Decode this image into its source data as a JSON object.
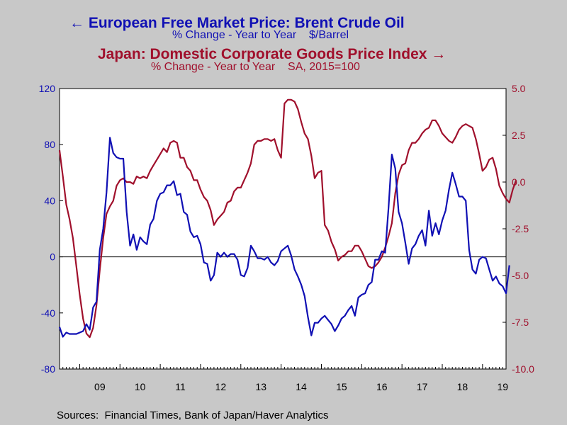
{
  "header": {
    "series1_title": "European Free Market Price: Brent Crude Oil",
    "series1_subtitle": "% Change - Year to Year    $/Barrel",
    "series2_title": "Japan: Domestic Corporate Goods Price Index",
    "series2_subtitle": "% Change - Year to Year    SA, 2015=100"
  },
  "footer": {
    "source": "Sources:  Financial Times, Bank of Japan/Haver Analytics"
  },
  "colors": {
    "background": "#c8c8c8",
    "plot_background": "#ffffff",
    "series1": "#1010b4",
    "series2": "#a0102c"
  },
  "chart_data": {
    "type": "line",
    "x_start": "2008-07",
    "x_end": "2019-08",
    "x_tick_labels": [
      "09",
      "10",
      "11",
      "12",
      "13",
      "14",
      "15",
      "16",
      "17",
      "18",
      "19"
    ],
    "left_axis": {
      "min": -80,
      "max": 120,
      "ticks": [
        -80,
        -40,
        0,
        40,
        80,
        120
      ],
      "tick_labels": [
        "-80",
        "-40",
        "0",
        "40",
        "80",
        "120"
      ]
    },
    "right_axis": {
      "min": -10,
      "max": 5,
      "ticks": [
        -10,
        -7.5,
        -5,
        -2.5,
        0,
        2.5,
        5
      ],
      "tick_labels": [
        "-10.0",
        "-7.5",
        "-5.0",
        "-2.5",
        "0.0",
        "2.5",
        "5.0"
      ]
    },
    "zero_line": 0,
    "grid": false,
    "series": [
      {
        "axis": "left",
        "legend_arrow": "left",
        "points": [
          [
            "2008-07",
            -50
          ],
          [
            "2008-08",
            -57
          ],
          [
            "2008-09",
            -54
          ],
          [
            "2008-10",
            -55
          ],
          [
            "2008-12",
            -55
          ],
          [
            "2009-02",
            -53
          ],
          [
            "2009-03",
            -48
          ],
          [
            "2009-04",
            -52
          ],
          [
            "2009-05",
            -36
          ],
          [
            "2009-06",
            -32
          ],
          [
            "2009-07",
            5
          ],
          [
            "2009-08",
            20
          ],
          [
            "2009-09",
            46
          ],
          [
            "2009-10",
            85
          ],
          [
            "2009-11",
            74
          ],
          [
            "2009-12",
            71
          ],
          [
            "2010-01",
            70
          ],
          [
            "2010-02",
            70
          ],
          [
            "2010-03",
            32
          ],
          [
            "2010-04",
            8
          ],
          [
            "2010-05",
            16
          ],
          [
            "2010-06",
            5
          ],
          [
            "2010-07",
            14
          ],
          [
            "2010-08",
            11
          ],
          [
            "2010-09",
            9
          ],
          [
            "2010-10",
            23
          ],
          [
            "2010-11",
            27
          ],
          [
            "2010-12",
            40
          ],
          [
            "2011-01",
            45
          ],
          [
            "2011-02",
            46
          ],
          [
            "2011-03",
            51
          ],
          [
            "2011-04",
            51
          ],
          [
            "2011-05",
            54
          ],
          [
            "2011-06",
            44
          ],
          [
            "2011-07",
            45
          ],
          [
            "2011-08",
            32
          ],
          [
            "2011-09",
            30
          ],
          [
            "2011-10",
            18
          ],
          [
            "2011-11",
            14
          ],
          [
            "2011-12",
            15
          ],
          [
            "2012-01",
            9
          ],
          [
            "2012-02",
            -4
          ],
          [
            "2012-03",
            -5
          ],
          [
            "2012-04",
            -17
          ],
          [
            "2012-05",
            -13
          ],
          [
            "2012-06",
            3
          ],
          [
            "2012-07",
            0
          ],
          [
            "2012-08",
            3
          ],
          [
            "2012-09",
            0
          ],
          [
            "2012-10",
            2
          ],
          [
            "2012-11",
            2
          ],
          [
            "2012-12",
            -2
          ],
          [
            "2013-01",
            -13
          ],
          [
            "2013-02",
            -14
          ],
          [
            "2013-03",
            -8
          ],
          [
            "2013-04",
            8
          ],
          [
            "2013-05",
            4
          ],
          [
            "2013-06",
            -1
          ],
          [
            "2013-07",
            -1
          ],
          [
            "2013-08",
            -2
          ],
          [
            "2013-09",
            0
          ],
          [
            "2013-10",
            -4
          ],
          [
            "2013-11",
            -6
          ],
          [
            "2013-12",
            -3
          ],
          [
            "2014-01",
            4
          ],
          [
            "2014-02",
            6
          ],
          [
            "2014-03",
            8
          ],
          [
            "2014-04",
            1
          ],
          [
            "2014-05",
            -9
          ],
          [
            "2014-06",
            -14
          ],
          [
            "2014-07",
            -20
          ],
          [
            "2014-08",
            -28
          ],
          [
            "2014-09",
            -43
          ],
          [
            "2014-10",
            -56
          ],
          [
            "2014-11",
            -47
          ],
          [
            "2014-12",
            -47
          ],
          [
            "2015-01",
            -44
          ],
          [
            "2015-02",
            -42
          ],
          [
            "2015-03",
            -45
          ],
          [
            "2015-04",
            -48
          ],
          [
            "2015-05",
            -53
          ],
          [
            "2015-06",
            -49
          ],
          [
            "2015-07",
            -44
          ],
          [
            "2015-08",
            -42
          ],
          [
            "2015-09",
            -38
          ],
          [
            "2015-10",
            -35
          ],
          [
            "2015-11",
            -42
          ],
          [
            "2015-12",
            -29
          ],
          [
            "2016-01",
            -27
          ],
          [
            "2016-02",
            -26
          ],
          [
            "2016-03",
            -20
          ],
          [
            "2016-04",
            -18
          ],
          [
            "2016-05",
            -2
          ],
          [
            "2016-06",
            -2
          ],
          [
            "2016-07",
            4
          ],
          [
            "2016-08",
            3
          ],
          [
            "2016-09",
            35
          ],
          [
            "2016-10",
            73
          ],
          [
            "2016-11",
            63
          ],
          [
            "2016-12",
            32
          ],
          [
            "2017-01",
            24
          ],
          [
            "2017-02",
            10
          ],
          [
            "2017-03",
            -5
          ],
          [
            "2017-04",
            6
          ],
          [
            "2017-05",
            9
          ],
          [
            "2017-06",
            15
          ],
          [
            "2017-07",
            19
          ],
          [
            "2017-08",
            8
          ],
          [
            "2017-09",
            33
          ],
          [
            "2017-10",
            15
          ],
          [
            "2017-11",
            24
          ],
          [
            "2017-12",
            16
          ],
          [
            "2018-01",
            26
          ],
          [
            "2018-02",
            33
          ],
          [
            "2018-03",
            48
          ],
          [
            "2018-04",
            60
          ],
          [
            "2018-05",
            52
          ],
          [
            "2018-06",
            43
          ],
          [
            "2018-07",
            43
          ],
          [
            "2018-08",
            40
          ],
          [
            "2018-09",
            5
          ],
          [
            "2018-10",
            -9
          ],
          [
            "2018-11",
            -12
          ],
          [
            "2018-12",
            -2
          ],
          [
            "2019-01",
            0
          ],
          [
            "2019-02",
            -1
          ],
          [
            "2019-03",
            -9
          ],
          [
            "2019-04",
            -17
          ],
          [
            "2019-05",
            -14
          ],
          [
            "2019-06",
            -19
          ],
          [
            "2019-07",
            -21
          ],
          [
            "2019-08",
            -26
          ],
          [
            "2019-09",
            -6
          ]
        ]
      },
      {
        "axis": "right",
        "legend_arrow": "right",
        "points": [
          [
            "2008-07",
            1.7
          ],
          [
            "2008-08",
            0.3
          ],
          [
            "2008-09",
            -1.2
          ],
          [
            "2008-10",
            -2.0
          ],
          [
            "2008-11",
            -3.0
          ],
          [
            "2008-12",
            -4.5
          ],
          [
            "2009-01",
            -6.0
          ],
          [
            "2009-02",
            -7.3
          ],
          [
            "2009-03",
            -8.1
          ],
          [
            "2009-04",
            -8.3
          ],
          [
            "2009-05",
            -7.8
          ],
          [
            "2009-06",
            -6.6
          ],
          [
            "2009-07",
            -4.7
          ],
          [
            "2009-08",
            -3.0
          ],
          [
            "2009-09",
            -1.7
          ],
          [
            "2009-10",
            -1.3
          ],
          [
            "2009-11",
            -1.0
          ],
          [
            "2009-12",
            -0.2
          ],
          [
            "2010-01",
            0.1
          ],
          [
            "2010-02",
            0.2
          ],
          [
            "2010-03",
            0.0
          ],
          [
            "2010-04",
            0.0
          ],
          [
            "2010-05",
            -0.1
          ],
          [
            "2010-06",
            0.3
          ],
          [
            "2010-07",
            0.2
          ],
          [
            "2010-08",
            0.3
          ],
          [
            "2010-09",
            0.2
          ],
          [
            "2010-10",
            0.6
          ],
          [
            "2010-11",
            0.9
          ],
          [
            "2010-12",
            1.2
          ],
          [
            "2011-01",
            1.5
          ],
          [
            "2011-02",
            1.8
          ],
          [
            "2011-03",
            1.6
          ],
          [
            "2011-04",
            2.1
          ],
          [
            "2011-05",
            2.2
          ],
          [
            "2011-06",
            2.1
          ],
          [
            "2011-07",
            1.3
          ],
          [
            "2011-08",
            1.3
          ],
          [
            "2011-09",
            0.8
          ],
          [
            "2011-10",
            0.6
          ],
          [
            "2011-11",
            0.1
          ],
          [
            "2011-12",
            0.1
          ],
          [
            "2012-01",
            -0.4
          ],
          [
            "2012-02",
            -0.8
          ],
          [
            "2012-03",
            -1.0
          ],
          [
            "2012-04",
            -1.5
          ],
          [
            "2012-05",
            -2.3
          ],
          [
            "2012-06",
            -2.0
          ],
          [
            "2012-07",
            -1.8
          ],
          [
            "2012-08",
            -1.6
          ],
          [
            "2012-09",
            -1.1
          ],
          [
            "2012-10",
            -1.0
          ],
          [
            "2012-11",
            -0.5
          ],
          [
            "2012-12",
            -0.3
          ],
          [
            "2013-01",
            -0.3
          ],
          [
            "2013-02",
            0.1
          ],
          [
            "2013-03",
            0.5
          ],
          [
            "2013-04",
            1.0
          ],
          [
            "2013-05",
            2.0
          ],
          [
            "2013-06",
            2.2
          ],
          [
            "2013-07",
            2.2
          ],
          [
            "2013-08",
            2.3
          ],
          [
            "2013-09",
            2.3
          ],
          [
            "2013-10",
            2.2
          ],
          [
            "2013-11",
            2.3
          ],
          [
            "2013-12",
            1.7
          ],
          [
            "2014-01",
            1.3
          ],
          [
            "2014-02",
            4.2
          ],
          [
            "2014-03",
            4.4
          ],
          [
            "2014-04",
            4.4
          ],
          [
            "2014-05",
            4.3
          ],
          [
            "2014-06",
            3.9
          ],
          [
            "2014-07",
            3.2
          ],
          [
            "2014-08",
            2.6
          ],
          [
            "2014-09",
            2.3
          ],
          [
            "2014-10",
            1.4
          ],
          [
            "2014-11",
            0.2
          ],
          [
            "2014-12",
            0.5
          ],
          [
            "2015-01",
            0.6
          ],
          [
            "2015-02",
            -2.3
          ],
          [
            "2015-03",
            -2.6
          ],
          [
            "2015-04",
            -3.2
          ],
          [
            "2015-05",
            -3.6
          ],
          [
            "2015-06",
            -4.2
          ],
          [
            "2015-07",
            -4.0
          ],
          [
            "2015-08",
            -3.9
          ],
          [
            "2015-09",
            -3.7
          ],
          [
            "2015-10",
            -3.7
          ],
          [
            "2015-11",
            -3.4
          ],
          [
            "2015-12",
            -3.4
          ],
          [
            "2016-01",
            -3.7
          ],
          [
            "2016-02",
            -4.1
          ],
          [
            "2016-03",
            -4.5
          ],
          [
            "2016-04",
            -4.6
          ],
          [
            "2016-05",
            -4.5
          ],
          [
            "2016-06",
            -4.3
          ],
          [
            "2016-07",
            -4.0
          ],
          [
            "2016-08",
            -3.5
          ],
          [
            "2016-09",
            -2.9
          ],
          [
            "2016-10",
            -2.2
          ],
          [
            "2016-11",
            -0.6
          ],
          [
            "2016-12",
            0.4
          ],
          [
            "2017-01",
            0.9
          ],
          [
            "2017-02",
            1.0
          ],
          [
            "2017-03",
            1.7
          ],
          [
            "2017-04",
            2.1
          ],
          [
            "2017-05",
            2.1
          ],
          [
            "2017-06",
            2.3
          ],
          [
            "2017-07",
            2.6
          ],
          [
            "2017-08",
            2.8
          ],
          [
            "2017-09",
            2.9
          ],
          [
            "2017-10",
            3.3
          ],
          [
            "2017-11",
            3.3
          ],
          [
            "2017-12",
            3.0
          ],
          [
            "2018-01",
            2.6
          ],
          [
            "2018-02",
            2.4
          ],
          [
            "2018-03",
            2.2
          ],
          [
            "2018-04",
            2.1
          ],
          [
            "2018-05",
            2.4
          ],
          [
            "2018-06",
            2.8
          ],
          [
            "2018-07",
            3.0
          ],
          [
            "2018-08",
            3.1
          ],
          [
            "2018-09",
            3.0
          ],
          [
            "2018-10",
            2.9
          ],
          [
            "2018-11",
            2.3
          ],
          [
            "2018-12",
            1.5
          ],
          [
            "2019-01",
            0.6
          ],
          [
            "2019-02",
            0.8
          ],
          [
            "2019-03",
            1.2
          ],
          [
            "2019-04",
            1.3
          ],
          [
            "2019-05",
            0.7
          ],
          [
            "2019-06",
            -0.2
          ],
          [
            "2019-07",
            -0.6
          ],
          [
            "2019-08",
            -0.9
          ],
          [
            "2019-09",
            -1.1
          ],
          [
            "2019-10",
            -0.4
          ],
          [
            "2019-11",
            0.1
          ]
        ]
      }
    ]
  }
}
